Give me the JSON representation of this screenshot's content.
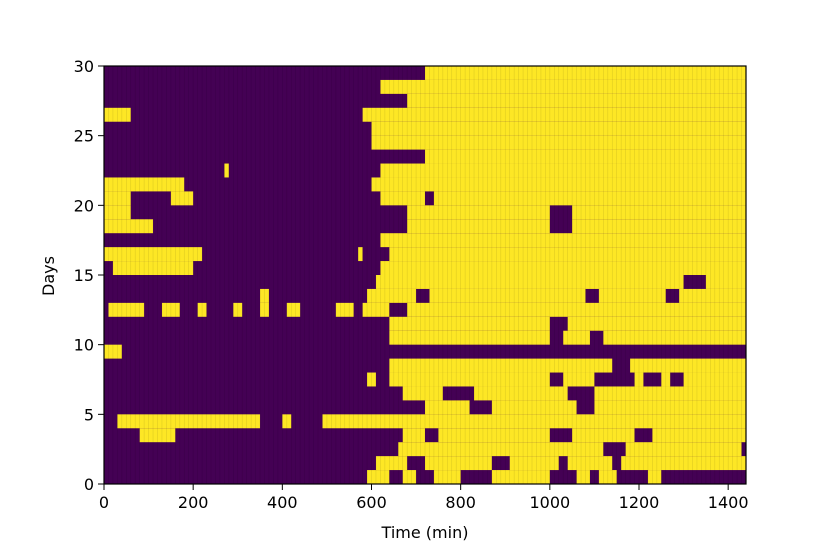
{
  "chart_data": {
    "type": "heatmap",
    "xlabel": "Time (min)",
    "ylabel": "Days",
    "xlim": [
      0,
      1440
    ],
    "ylim": [
      0,
      30
    ],
    "xticks": [
      0,
      200,
      400,
      600,
      800,
      1000,
      1200,
      1400
    ],
    "yticks": [
      0,
      5,
      10,
      15,
      20,
      25,
      30
    ],
    "grid": false,
    "legend": "none",
    "colors": {
      "on": "#fde725",
      "off": "#440154"
    },
    "cell_width_min": 10,
    "rows_bottom_to_top": [
      [
        [
          590,
          640
        ],
        [
          670,
          700
        ],
        [
          740,
          800
        ],
        [
          870,
          1000
        ],
        [
          1060,
          1090
        ],
        [
          1110,
          1150
        ],
        [
          1220,
          1250
        ]
      ],
      [
        [
          610,
          680
        ],
        [
          720,
          870
        ],
        [
          910,
          1020
        ],
        [
          1040,
          1140
        ],
        [
          1160,
          1440
        ]
      ],
      [
        [
          660,
          1120
        ],
        [
          1170,
          1430
        ]
      ],
      [
        [
          80,
          160
        ],
        [
          670,
          720
        ],
        [
          750,
          1000
        ],
        [
          1050,
          1190
        ],
        [
          1230,
          1440
        ]
      ],
      [
        [
          30,
          350
        ],
        [
          400,
          420
        ],
        [
          490,
          1440
        ]
      ],
      [
        [
          720,
          820
        ],
        [
          870,
          1060
        ],
        [
          1100,
          1440
        ]
      ],
      [
        [
          670,
          760
        ],
        [
          830,
          1040
        ],
        [
          1100,
          1440
        ]
      ],
      [
        [
          590,
          610
        ],
        [
          640,
          1000
        ],
        [
          1030,
          1100
        ],
        [
          1190,
          1210
        ],
        [
          1250,
          1270
        ],
        [
          1300,
          1440
        ]
      ],
      [
        [
          640,
          1140
        ],
        [
          1180,
          1440
        ]
      ],
      [
        [
          0,
          40
        ]
      ],
      [
        [
          640,
          1000
        ],
        [
          1030,
          1090
        ],
        [
          1120,
          1440
        ]
      ],
      [
        [
          640,
          1000
        ],
        [
          1040,
          1440
        ]
      ],
      [
        [
          10,
          90
        ],
        [
          130,
          170
        ],
        [
          210,
          230
        ],
        [
          290,
          310
        ],
        [
          350,
          370
        ],
        [
          410,
          440
        ],
        [
          520,
          560
        ],
        [
          580,
          640
        ],
        [
          680,
          1440
        ]
      ],
      [
        [
          350,
          370
        ],
        [
          590,
          700
        ],
        [
          730,
          1080
        ],
        [
          1110,
          1260
        ],
        [
          1290,
          1440
        ]
      ],
      [
        [
          610,
          1300
        ],
        [
          1350,
          1440
        ]
      ],
      [
        [
          20,
          200
        ],
        [
          620,
          1440
        ]
      ],
      [
        [
          0,
          220
        ],
        [
          570,
          580
        ],
        [
          640,
          1440
        ]
      ],
      [
        [
          620,
          1440
        ]
      ],
      [
        [
          0,
          110
        ],
        [
          680,
          1000
        ],
        [
          1050,
          1440
        ]
      ],
      [
        [
          0,
          60
        ],
        [
          680,
          1000
        ],
        [
          1050,
          1440
        ]
      ],
      [
        [
          0,
          60
        ],
        [
          150,
          200
        ],
        [
          620,
          720
        ],
        [
          740,
          1440
        ]
      ],
      [
        [
          0,
          180
        ],
        [
          600,
          1440
        ]
      ],
      [
        [
          270,
          280
        ],
        [
          620,
          1440
        ]
      ],
      [
        [
          720,
          1440
        ]
      ],
      [
        [
          600,
          1440
        ]
      ],
      [
        [
          600,
          1440
        ]
      ],
      [
        [
          0,
          60
        ],
        [
          580,
          1440
        ]
      ],
      [
        [
          680,
          1440
        ]
      ],
      [
        [
          620,
          1440
        ]
      ],
      [
        [
          720,
          1440
        ]
      ]
    ]
  }
}
